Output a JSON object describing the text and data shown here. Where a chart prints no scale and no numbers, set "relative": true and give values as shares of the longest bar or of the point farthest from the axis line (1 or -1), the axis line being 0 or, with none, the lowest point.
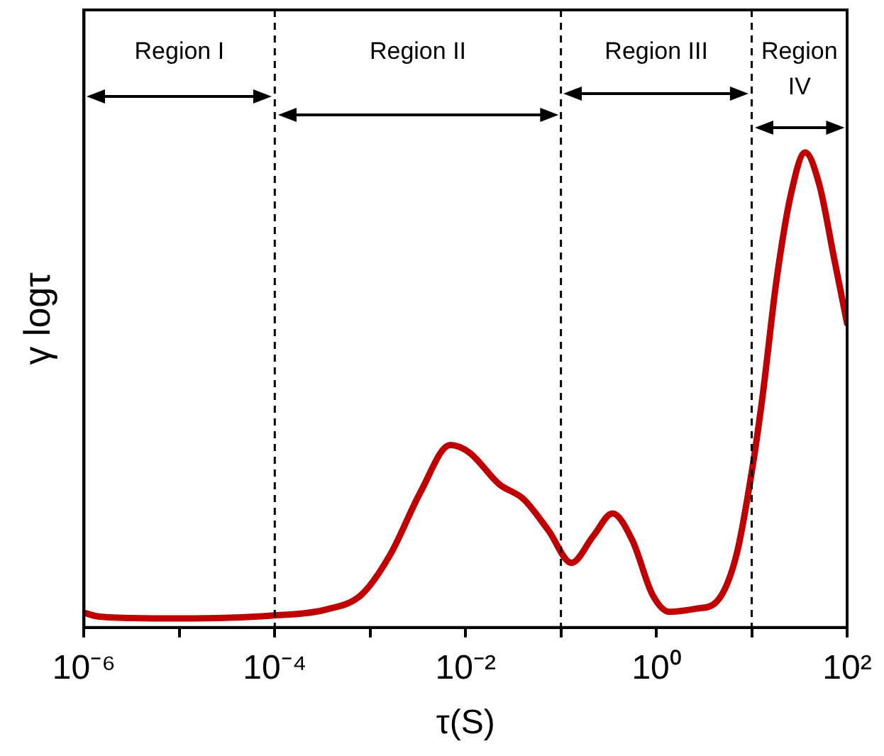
{
  "chart_data": {
    "type": "line",
    "xlabel": "τ(S)",
    "ylabel": "γ logτ",
    "relative": true,
    "log": "x",
    "grid": false,
    "legend": false,
    "marker": "none",
    "line_style": "solid",
    "x": [
      1e-06,
      1.45e-06,
      9.8e-06,
      9.3e-05,
      0.000347,
      0.00081,
      0.00162,
      0.00339,
      0.0069,
      0.011,
      0.0224,
      0.0407,
      0.0741,
      0.129,
      0.219,
      0.347,
      0.562,
      0.912,
      1.38,
      2.69,
      4.27,
      6.92,
      10,
      12.9,
      18.2,
      25.7,
      36.3,
      51.3,
      72.4,
      100
    ],
    "series": [
      {
        "color": "#c00000",
        "values": [
          0.031,
          0.023,
          0.019,
          0.025,
          0.038,
          0.069,
          0.153,
          0.286,
          0.384,
          0.368,
          0.302,
          0.27,
          0.204,
          0.136,
          0.193,
          0.24,
          0.183,
          0.069,
          0.033,
          0.04,
          0.054,
          0.153,
          0.327,
          0.482,
          0.731,
          0.911,
          1,
          0.931,
          0.781,
          0.64
        ]
      }
    ],
    "xlim": [
      1e-06,
      100
    ],
    "xticks": [
      {
        "value": 1e-06,
        "label": "10⁻⁶"
      },
      {
        "value": 1e-05,
        "label": null
      },
      {
        "value": 0.0001,
        "label": "10⁻⁴"
      },
      {
        "value": 0.001,
        "label": null
      },
      {
        "value": 0.01,
        "label": "10⁻²"
      },
      {
        "value": 0.1,
        "label": null
      },
      {
        "value": 1,
        "label": "10⁰"
      },
      {
        "value": 10,
        "label": null
      },
      {
        "value": 100,
        "label": "10²"
      }
    ],
    "ref_lines": [
      {
        "axis": "x",
        "value": 0.0001,
        "line_style": "dashed"
      },
      {
        "axis": "x",
        "value": 0.1,
        "line_style": "dashed"
      },
      {
        "axis": "x",
        "value": 10,
        "line_style": "dashed"
      }
    ],
    "annotations": [
      "Region I",
      "Region II",
      "Region III",
      "Region IV"
    ]
  }
}
